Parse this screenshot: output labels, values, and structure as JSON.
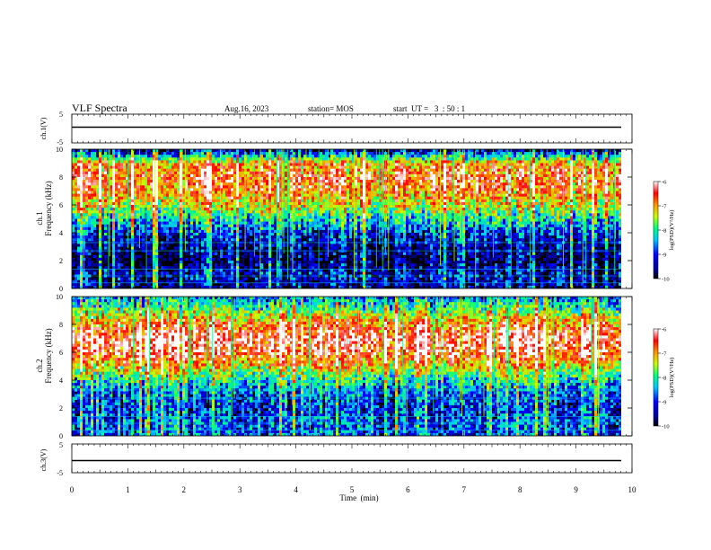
{
  "header": {
    "title": "VLF Spectra",
    "date": "Aug.16, 2023",
    "station": "station= MOS",
    "start": "start  UT =   3  : 50 : 1"
  },
  "chart_data": [
    {
      "type": "line",
      "panel": "ch1-waveform",
      "ylabel": "ch.1(V)",
      "ylim": [
        -5,
        5
      ],
      "yticks": [
        "5",
        "-5"
      ],
      "x": [
        0,
        10
      ],
      "values": [
        0,
        0
      ]
    },
    {
      "type": "heatmap",
      "panel": "ch1-spectrogram",
      "ylabel_top": "ch.1",
      "ylabel": "Frequency (kHz)",
      "ylim": [
        0,
        10
      ],
      "yticks": [
        "0",
        "2",
        "4",
        "6",
        "8",
        "10"
      ],
      "xlim": [
        0,
        10
      ],
      "colorbar": {
        "label": "log(PSD)(V²/Hz)",
        "range": [
          -10,
          -6
        ],
        "ticks": [
          "-6",
          "-7",
          "-8",
          "-9",
          "-10"
        ]
      },
      "intensity_profile": {
        "freq_khz": [
          0,
          1,
          2,
          3,
          4,
          5,
          6,
          7,
          8,
          9,
          10
        ],
        "level": [
          0.15,
          0.2,
          0.1,
          0.15,
          0.25,
          0.45,
          0.65,
          0.8,
          0.85,
          0.75,
          0.1
        ]
      }
    },
    {
      "type": "heatmap",
      "panel": "ch2-spectrogram",
      "ylabel_top": "ch.2",
      "ylabel": "Frequency (kHz)",
      "ylim": [
        0,
        10
      ],
      "yticks": [
        "0",
        "2",
        "4",
        "6",
        "8",
        "10"
      ],
      "xlim": [
        0,
        10
      ],
      "colorbar": {
        "label": "log(PSD)(V²/Hz)",
        "range": [
          -10,
          -6
        ],
        "ticks": [
          "-6",
          "-7",
          "-8",
          "-9",
          "-10"
        ]
      },
      "intensity_profile": {
        "freq_khz": [
          0,
          1,
          2,
          3,
          4,
          5,
          6,
          7,
          8,
          9,
          10
        ],
        "level": [
          0.3,
          0.3,
          0.25,
          0.3,
          0.45,
          0.7,
          0.9,
          0.95,
          0.8,
          0.55,
          0.3
        ]
      }
    },
    {
      "type": "line",
      "panel": "ch3-waveform",
      "ylabel": "ch.3(V)",
      "ylim": [
        -5,
        5
      ],
      "yticks": [
        "5",
        "-5"
      ],
      "x": [
        0,
        10
      ],
      "values": [
        0,
        0
      ]
    }
  ],
  "xaxis": {
    "label": "Time  (min)",
    "ticks": [
      "0",
      "1",
      "2",
      "3",
      "4",
      "5",
      "6",
      "7",
      "8",
      "9",
      "10"
    ],
    "range": [
      0,
      10
    ]
  },
  "colors": {
    "background": "#ffffff",
    "colormap": [
      "#000000",
      "#00007a",
      "#0000ff",
      "#00c8ff",
      "#00ff80",
      "#c8ff00",
      "#ff9600",
      "#ff0000",
      "#ffffff"
    ]
  }
}
